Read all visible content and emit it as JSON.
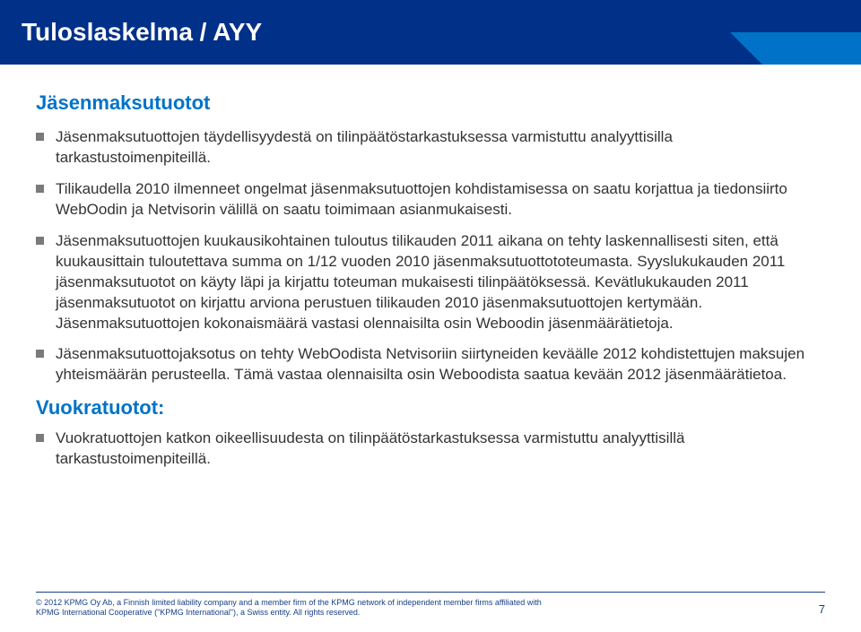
{
  "colors": {
    "title_bg": "#003087",
    "title_text": "#ffffff",
    "accent": "#0073c8",
    "body_text": "#333333"
  },
  "title": "Tuloslaskelma / AYY",
  "section1": {
    "heading": "Jäsenmaksutuotot",
    "bullets": [
      "Jäsenmaksutuottojen täydellisyydestä on tilinpäätöstarkastuksessa varmistuttu analyyttisilla tarkastustoimenpiteillä.",
      "Tilikaudella 2010 ilmenneet ongelmat jäsenmaksutuottojen kohdistamisessa on saatu korjattua ja tiedonsiirto WebOodin ja Netvisorin välillä on saatu toimimaan asianmukaisesti.",
      "Jäsenmaksutuottojen kuukausikohtainen tuloutus tilikauden 2011 aikana on tehty laskennallisesti siten, että kuukausittain tuloutettava summa on 1/12 vuoden 2010 jäsenmaksutuottototeumasta. Syyslukukauden 2011 jäsenmaksutuotot on käyty läpi ja kirjattu toteuman mukaisesti tilinpäätöksessä. Kevätlukukauden 2011 jäsenmaksutuotot on kirjattu arviona perustuen tilikauden 2010 jäsenmaksutuottojen kertymään. Jäsenmaksutuottojen kokonaismäärä vastasi olennaisilta osin Weboodin jäsenmäärätietoja.",
      "Jäsenmaksutuottojaksotus on tehty WebOodista Netvisoriin siirtyneiden keväälle 2012 kohdistettujen maksujen yhteismäärän perusteella. Tämä vastaa olennaisilta osin Weboodista saatua kevään 2012 jäsenmäärätietoa."
    ]
  },
  "section2": {
    "heading": "Vuokratuotot:",
    "bullets": [
      "Vuokratuottojen katkon oikeellisuudesta on tilinpäätöstarkastuksessa varmistuttu analyyttisillä tarkastustoimenpiteillä."
    ]
  },
  "footer": {
    "line1": "© 2012 KPMG Oy Ab, a Finnish limited liability company and a member firm of the KPMG network of independent member firms affiliated with",
    "line2": "KPMG International Cooperative (\"KPMG International\"), a Swiss entity. All rights reserved.",
    "page": "7"
  }
}
